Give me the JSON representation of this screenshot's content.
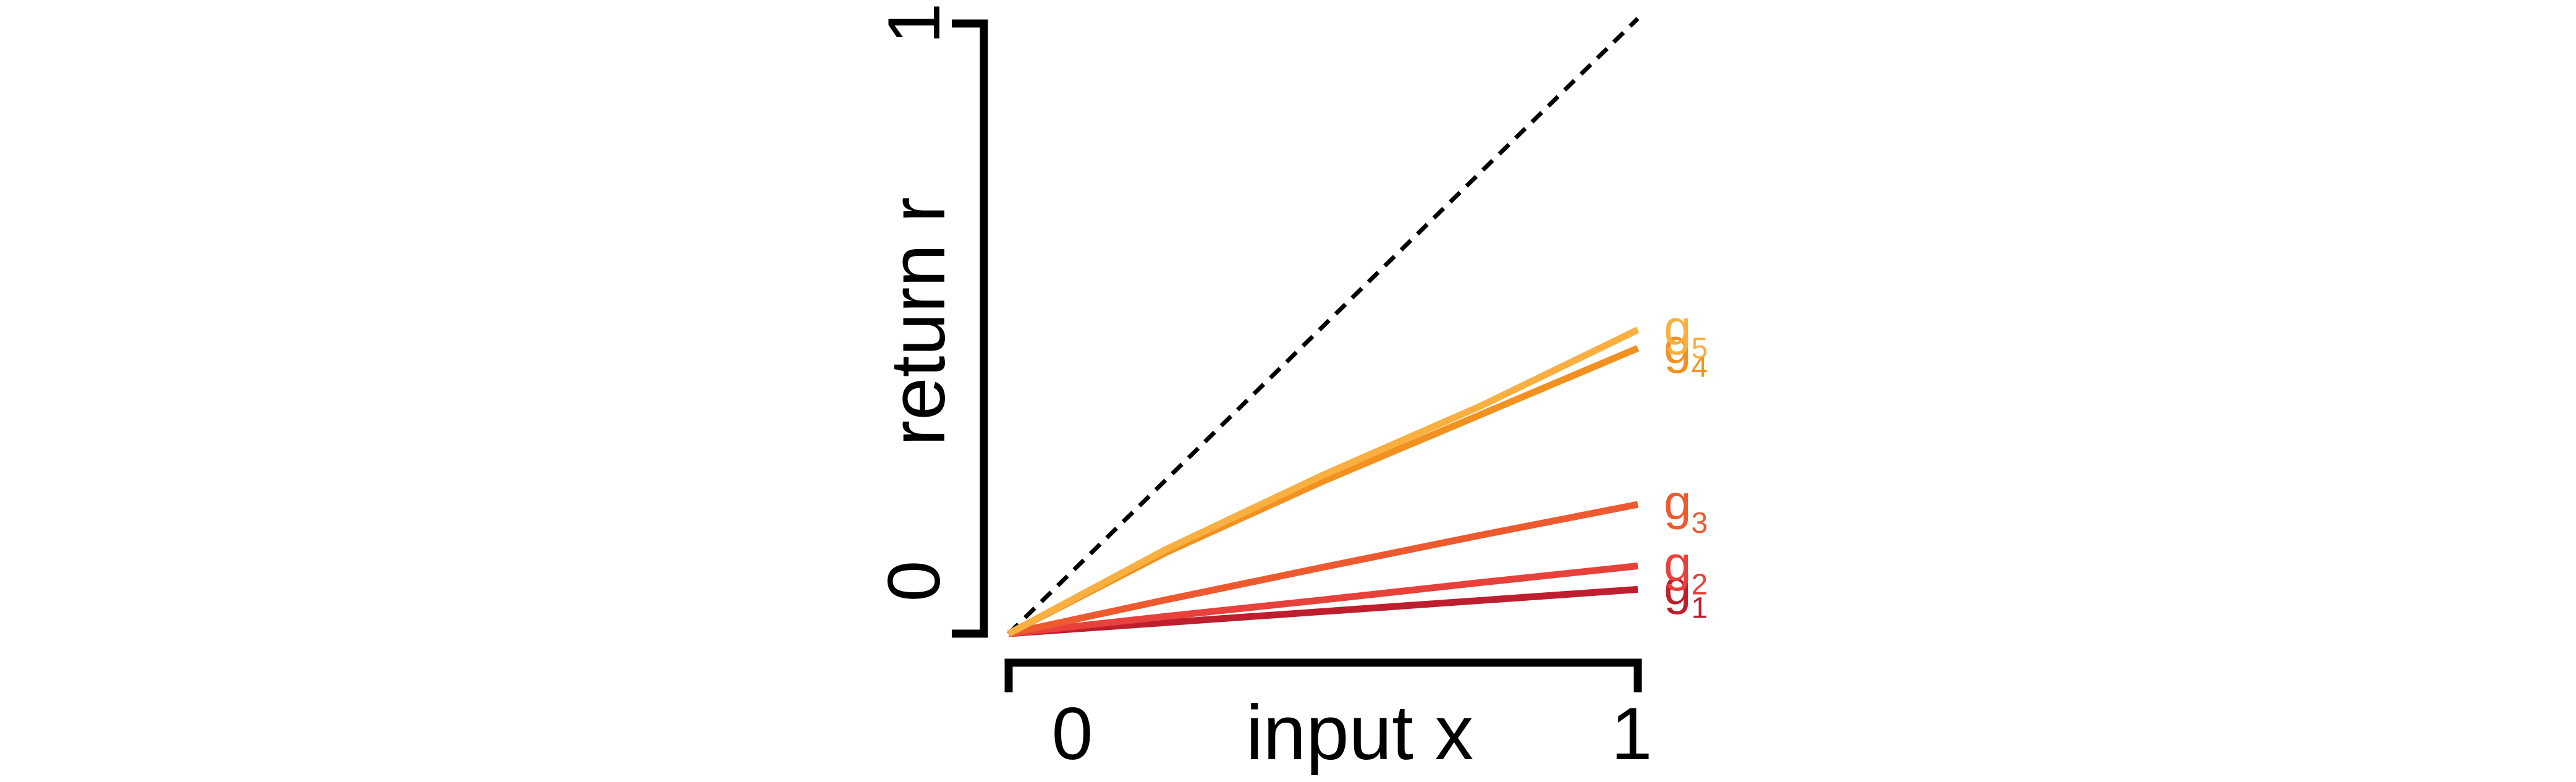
{
  "chart_data": {
    "type": "line",
    "xlabel": "input x",
    "ylabel": "return r",
    "xlim": [
      0,
      1
    ],
    "ylim": [
      0,
      1
    ],
    "x_ticks": [
      "0",
      "1"
    ],
    "y_ticks": [
      "0",
      "1"
    ],
    "grid": false,
    "legend": "inline labels at right end of each line",
    "reference_line": {
      "style": "dashed",
      "color": "#000000",
      "x": [
        0,
        1
      ],
      "y": [
        0,
        1
      ]
    },
    "series": [
      {
        "name": "g",
        "sub": "1",
        "color": "#be1e2d",
        "x": [
          0,
          0.25,
          0.5,
          0.75,
          1
        ],
        "y": [
          0,
          0.018,
          0.036,
          0.054,
          0.072
        ]
      },
      {
        "name": "g",
        "sub": "2",
        "color": "#e8403a",
        "x": [
          0,
          0.25,
          0.5,
          0.75,
          1
        ],
        "y": [
          0,
          0.028,
          0.055,
          0.083,
          0.11
        ]
      },
      {
        "name": "g",
        "sub": "3",
        "color": "#ee5a2f",
        "x": [
          0,
          0.25,
          0.5,
          0.75,
          1
        ],
        "y": [
          0,
          0.055,
          0.108,
          0.16,
          0.21
        ]
      },
      {
        "name": "g",
        "sub": "4",
        "color": "#f29120",
        "x": [
          0,
          0.25,
          0.5,
          0.75,
          1
        ],
        "y": [
          0,
          0.132,
          0.248,
          0.356,
          0.464
        ]
      },
      {
        "name": "g",
        "sub": "5",
        "color": "#f9b040",
        "x": [
          0,
          0.25,
          0.5,
          0.75,
          1
        ],
        "y": [
          0,
          0.137,
          0.258,
          0.37,
          0.494
        ]
      }
    ]
  }
}
